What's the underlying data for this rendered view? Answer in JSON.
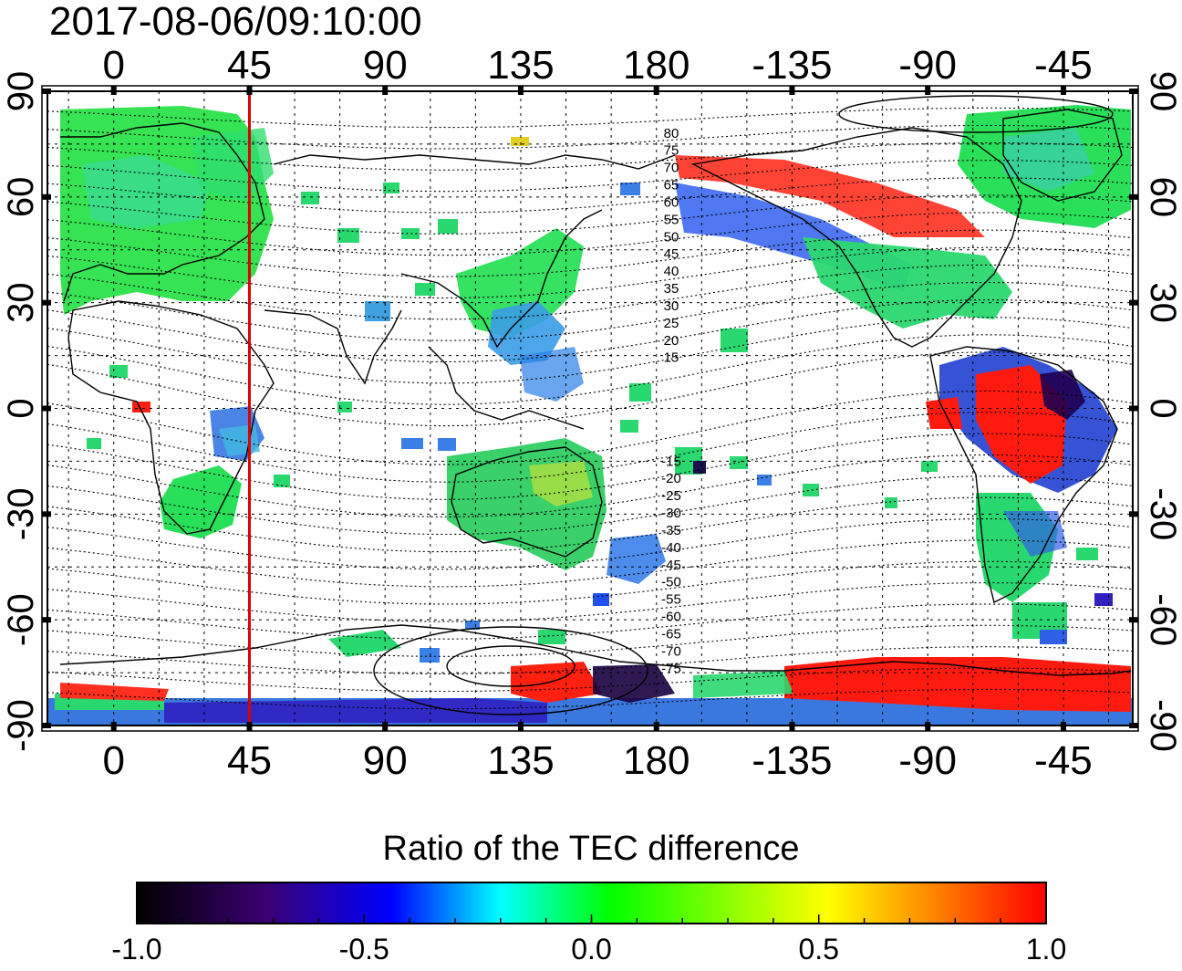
{
  "title": "2017-08-06/09:10:00",
  "map": {
    "lon_ticks_top": [
      "0",
      "45",
      "90",
      "135",
      "180",
      "-135",
      "-90",
      "-45"
    ],
    "lon_ticks_bottom": [
      "0",
      "45",
      "90",
      "135",
      "180",
      "-135",
      "-90",
      "-45"
    ],
    "lat_ticks_left": [
      "90",
      "60",
      "30",
      "0",
      "-30",
      "-60",
      "-90"
    ],
    "lat_ticks_right": [
      "90",
      "60",
      "30",
      "0",
      "-30",
      "-60",
      "-90"
    ],
    "lon_tick_values": [
      0,
      45,
      90,
      135,
      180,
      225,
      270,
      315
    ],
    "lat_tick_values": [
      90,
      60,
      30,
      0,
      -30,
      -60,
      -90
    ],
    "lon_range": [
      -22,
      338
    ],
    "lat_range": [
      -90,
      90
    ],
    "grid": true,
    "marker_longitude": 45,
    "magnetic_latitude_labels": [
      "80",
      "75",
      "70",
      "65",
      "60",
      "55",
      "50",
      "45",
      "40",
      "35",
      "30",
      "25",
      "20",
      "15",
      "-15",
      "-20",
      "-25",
      "-30",
      "-35",
      "-40",
      "-45",
      "-50",
      "-55",
      "-60",
      "-65",
      "-70",
      "-75"
    ]
  },
  "colorbar": {
    "title": "Ratio of the TEC difference",
    "ticks": [
      "-1.0",
      "-0.5",
      "0.0",
      "0.5",
      "1.0"
    ],
    "range": [
      -1.0,
      1.0
    ],
    "stops": [
      "#000000",
      "#3a0070",
      "#0000ff",
      "#00ffff",
      "#00ff00",
      "#ffff00",
      "#ff8000",
      "#ff0000"
    ]
  },
  "colors": {
    "marker": "#dd0000",
    "green": "#22e040",
    "cyan": "#20d0c8",
    "blue": "#2050f0",
    "red": "#ff1010",
    "yellow": "#e0e020"
  }
}
